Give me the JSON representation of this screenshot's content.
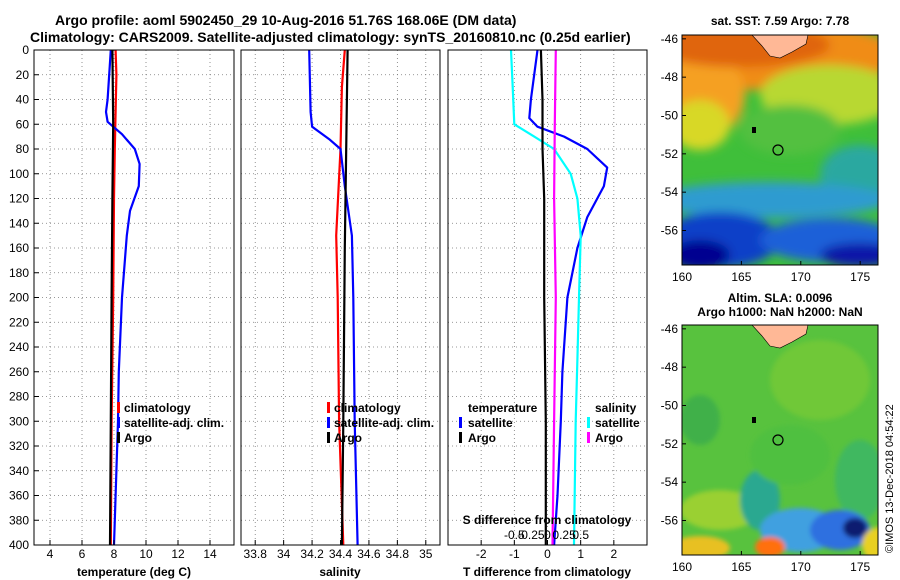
{
  "header": {
    "line1": "Argo profile: aoml 5902450_29 10-Aug-2016 51.76S 168.06E (DM data)",
    "line2": "Climatology: CARS2009. Satellite-adjusted climatology: synTS_20160810.nc (0.25d earlier)"
  },
  "credit": "©IMOS 13-Dec-2018 04:54:22",
  "colors": {
    "climatology": "#ff0000",
    "satellite": "#0000ff",
    "argo": "#000000",
    "sal_satellite": "#00ffff",
    "sal_argo": "#ff00ff",
    "land": "#ffb896",
    "grid": "#888888"
  },
  "chart_data": [
    {
      "id": "temperature",
      "type": "line",
      "xlabel": "temperature (deg C)",
      "ylabel": "",
      "xlim": [
        3,
        15.5
      ],
      "ylim": [
        400,
        0
      ],
      "xticks": [
        4,
        6,
        8,
        10,
        12,
        14
      ],
      "yticks": [
        0,
        20,
        40,
        60,
        80,
        100,
        120,
        140,
        160,
        180,
        200,
        220,
        240,
        260,
        280,
        300,
        320,
        340,
        360,
        380,
        400
      ],
      "grid": true,
      "legend": [
        "climatology",
        "satellite-adj. clim.",
        "Argo"
      ],
      "series": [
        {
          "name": "climatology",
          "color": "#ff0000",
          "points": [
            [
              8.1,
              0
            ],
            [
              8.15,
              20
            ],
            [
              8.1,
              50
            ],
            [
              8.05,
              80
            ],
            [
              8.0,
              120
            ],
            [
              7.95,
              200
            ],
            [
              7.85,
              300
            ],
            [
              7.8,
              400
            ]
          ]
        },
        {
          "name": "satellite-adj. clim.",
          "color": "#0000ff",
          "points": [
            [
              7.8,
              0
            ],
            [
              7.6,
              40
            ],
            [
              7.5,
              50
            ],
            [
              7.6,
              58
            ],
            [
              8.5,
              68
            ],
            [
              9.3,
              80
            ],
            [
              9.6,
              92
            ],
            [
              9.55,
              110
            ],
            [
              9.0,
              130
            ],
            [
              8.8,
              150
            ],
            [
              8.5,
              200
            ],
            [
              8.3,
              260
            ],
            [
              8.25,
              300
            ],
            [
              8.1,
              360
            ],
            [
              8.0,
              400
            ]
          ]
        },
        {
          "name": "Argo",
          "color": "#000000",
          "points": [
            [
              7.9,
              0
            ],
            [
              7.95,
              60
            ],
            [
              7.9,
              120
            ],
            [
              7.85,
              200
            ],
            [
              7.8,
              300
            ],
            [
              7.75,
              400
            ]
          ]
        }
      ]
    },
    {
      "id": "salinity",
      "type": "line",
      "xlabel": "salinity",
      "xlim": [
        33.7,
        35.1
      ],
      "ylim": [
        400,
        0
      ],
      "xticks": [
        33.8,
        34,
        34.2,
        34.4,
        34.6,
        34.8,
        35
      ],
      "grid": true,
      "legend": [
        "climatology",
        "satellite-adj. clim.",
        "Argo"
      ],
      "series": [
        {
          "name": "climatology",
          "color": "#ff0000",
          "points": [
            [
              34.43,
              0
            ],
            [
              34.41,
              30
            ],
            [
              34.4,
              80
            ],
            [
              34.37,
              150
            ],
            [
              34.38,
              200
            ],
            [
              34.39,
              300
            ],
            [
              34.42,
              400
            ]
          ]
        },
        {
          "name": "satellite-adj. clim.",
          "color": "#0000ff",
          "points": [
            [
              34.18,
              0
            ],
            [
              34.19,
              50
            ],
            [
              34.2,
              62
            ],
            [
              34.32,
              72
            ],
            [
              34.4,
              80
            ],
            [
              34.43,
              110
            ],
            [
              34.48,
              150
            ],
            [
              34.49,
              200
            ],
            [
              34.5,
              300
            ],
            [
              34.52,
              400
            ]
          ]
        },
        {
          "name": "Argo",
          "color": "#000000",
          "points": [
            [
              34.45,
              0
            ],
            [
              34.44,
              80
            ],
            [
              34.43,
              160
            ],
            [
              34.42,
              300
            ],
            [
              34.41,
              400
            ]
          ]
        }
      ]
    },
    {
      "id": "difference",
      "type": "line",
      "xlabel": "T difference from climatology",
      "top_label": "S difference from climatology",
      "xlim": [
        -3,
        3
      ],
      "ylim": [
        400,
        0
      ],
      "xticks": [
        -2,
        -1,
        0,
        1,
        2
      ],
      "xtick_labels": [
        "-2",
        "-1",
        "0",
        "1",
        "2"
      ],
      "sticks": [
        -0.5,
        -0.25,
        0,
        0.25,
        0.5
      ],
      "stick_labels": [
        "-0.5",
        "-0.25",
        "0",
        "0.25",
        "0.5"
      ],
      "grid": true,
      "legend_left_title": "temperature",
      "legend_right_title": "salinity",
      "legend_left": [
        "satellite",
        "Argo"
      ],
      "legend_right": [
        "satellite",
        "Argo"
      ],
      "series": [
        {
          "name": "T satellite",
          "color": "#0000ff",
          "points": [
            [
              -0.3,
              0
            ],
            [
              -0.5,
              40
            ],
            [
              -0.55,
              55
            ],
            [
              -0.3,
              62
            ],
            [
              0.5,
              70
            ],
            [
              1.2,
              80
            ],
            [
              1.8,
              95
            ],
            [
              1.7,
              110
            ],
            [
              1.2,
              135
            ],
            [
              0.9,
              160
            ],
            [
              0.6,
              200
            ],
            [
              0.45,
              260
            ],
            [
              0.4,
              300
            ],
            [
              0.3,
              360
            ],
            [
              0.2,
              400
            ]
          ]
        },
        {
          "name": "S satellite",
          "color": "#00ffff",
          "points": [
            [
              -1.1,
              0
            ],
            [
              -1.05,
              30
            ],
            [
              -1.0,
              60
            ],
            [
              -0.4,
              70
            ],
            [
              0.2,
              80
            ],
            [
              0.7,
              100
            ],
            [
              0.9,
              120
            ],
            [
              1.0,
              150
            ],
            [
              0.95,
              200
            ],
            [
              0.9,
              250
            ],
            [
              0.85,
              300
            ],
            [
              0.8,
              400
            ]
          ]
        },
        {
          "name": "T Argo",
          "color": "#000000",
          "points": [
            [
              -0.2,
              0
            ],
            [
              -0.15,
              40
            ],
            [
              -0.15,
              80
            ],
            [
              -0.1,
              120
            ],
            [
              -0.1,
              200
            ],
            [
              -0.05,
              300
            ],
            [
              -0.05,
              400
            ]
          ]
        },
        {
          "name": "S Argo",
          "color": "#ff00ff",
          "points": [
            [
              0.25,
              0
            ],
            [
              0.22,
              60
            ],
            [
              0.2,
              120
            ],
            [
              0.25,
              200
            ],
            [
              0.2,
              300
            ],
            [
              0.15,
              400
            ]
          ]
        }
      ]
    },
    {
      "id": "sst_map",
      "type": "heatmap",
      "title": "sat. SST: 7.59 Argo: 7.78",
      "xlim": [
        160,
        176.5
      ],
      "ylim": [
        -57.8,
        -45.8
      ],
      "xticks": [
        160,
        165,
        170,
        175
      ],
      "yticks": [
        -46,
        -48,
        -50,
        -52,
        -54,
        -56
      ],
      "argo_position": [
        168.06,
        -51.76
      ]
    },
    {
      "id": "sla_map",
      "type": "heatmap",
      "title_line1": "Altim. SLA: 0.0096",
      "title_line2": "Argo h1000: NaN h2000: NaN",
      "xlim": [
        160,
        176.5
      ],
      "ylim": [
        -57.8,
        -45.8
      ],
      "xticks": [
        160,
        165,
        170,
        175
      ],
      "yticks": [
        -46,
        -48,
        -50,
        -52,
        -54,
        -56
      ],
      "argo_position": [
        168.06,
        -51.76
      ]
    }
  ]
}
